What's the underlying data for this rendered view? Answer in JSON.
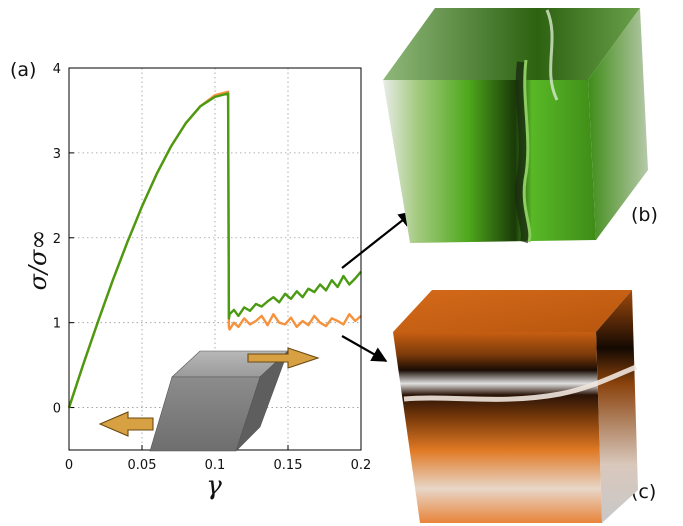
{
  "labels": {
    "panel_a": "(a)",
    "panel_b": "(b)",
    "panel_c": "(c)"
  },
  "chart_data": {
    "type": "line",
    "xlabel": "γ",
    "ylabel": "σ/σ∞",
    "xlim": [
      0,
      0.2
    ],
    "ylim": [
      -0.5,
      4
    ],
    "xticks": [
      0,
      0.05,
      0.1,
      0.15,
      0.2
    ],
    "xtick_labels": [
      "0",
      "0.05",
      "0.1",
      "0.15",
      "0.2"
    ],
    "yticks": [
      0,
      1,
      2,
      3,
      4
    ],
    "ytick_labels": [
      "0",
      "1",
      "2",
      "3",
      "4"
    ],
    "grid": true,
    "series": [
      {
        "color": "#4a9a12",
        "x": [
          0,
          0.01,
          0.02,
          0.03,
          0.04,
          0.05,
          0.06,
          0.07,
          0.08,
          0.09,
          0.1,
          0.109,
          0.1095,
          0.11,
          0.113,
          0.116,
          0.12,
          0.124,
          0.128,
          0.132,
          0.136,
          0.14,
          0.144,
          0.148,
          0.152,
          0.156,
          0.16,
          0.164,
          0.168,
          0.172,
          0.176,
          0.18,
          0.184,
          0.188,
          0.192,
          0.196,
          0.2
        ],
        "y": [
          0,
          0.52,
          1.02,
          1.5,
          1.95,
          2.37,
          2.75,
          3.08,
          3.35,
          3.55,
          3.66,
          3.7,
          1.05,
          1.1,
          1.15,
          1.08,
          1.18,
          1.14,
          1.22,
          1.19,
          1.25,
          1.3,
          1.24,
          1.34,
          1.28,
          1.37,
          1.3,
          1.4,
          1.36,
          1.45,
          1.38,
          1.5,
          1.42,
          1.55,
          1.45,
          1.52,
          1.6
        ]
      },
      {
        "color": "#f5923e",
        "x": [
          0,
          0.01,
          0.02,
          0.03,
          0.04,
          0.05,
          0.06,
          0.07,
          0.08,
          0.09,
          0.1,
          0.109,
          0.1095,
          0.11,
          0.113,
          0.116,
          0.12,
          0.124,
          0.128,
          0.132,
          0.136,
          0.14,
          0.144,
          0.148,
          0.152,
          0.156,
          0.16,
          0.164,
          0.168,
          0.172,
          0.176,
          0.18,
          0.184,
          0.188,
          0.192,
          0.196,
          0.2
        ],
        "y": [
          0,
          0.52,
          1.02,
          1.5,
          1.95,
          2.37,
          2.75,
          3.08,
          3.35,
          3.55,
          3.68,
          3.72,
          0.95,
          0.92,
          1.0,
          0.95,
          1.05,
          0.98,
          1.02,
          1.08,
          0.97,
          1.1,
          1.0,
          0.98,
          1.06,
          0.95,
          1.02,
          0.97,
          1.08,
          1.0,
          0.96,
          1.05,
          1.02,
          0.98,
          1.1,
          1.02,
          1.08
        ]
      }
    ]
  }
}
